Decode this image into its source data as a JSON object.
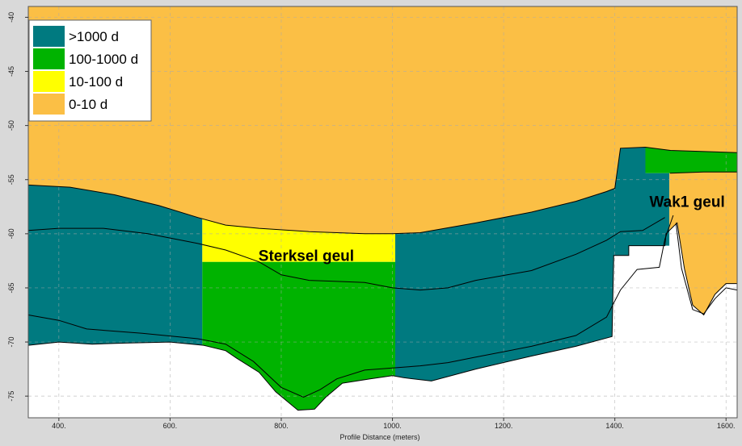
{
  "chart_data": {
    "type": "area",
    "title": "",
    "xlabel": "Profile Distance (meters)",
    "ylabel": "",
    "xlim": [
      345,
      1620
    ],
    "ylim": [
      -77,
      -39
    ],
    "x_ticks": [
      400,
      600,
      800,
      1000,
      1200,
      1400,
      1600
    ],
    "x_tick_labels": [
      "400.",
      "600.",
      "800.",
      "1000.",
      "1200.",
      "1400.",
      "1600."
    ],
    "y_ticks": [
      -40,
      -45,
      -50,
      -55,
      -60,
      -65,
      -70,
      -75
    ],
    "y_tick_labels": [
      "-40",
      "-45",
      "-50",
      "-55",
      "-60",
      "-65",
      "-70",
      "-75"
    ],
    "grid": true,
    "legend_position": "top-left",
    "legend": [
      {
        "label": ">1000 d",
        "color": "#007a80"
      },
      {
        "label": "100-1000 d",
        "color": "#00b300"
      },
      {
        "label": "10-100 d",
        "color": "#ffff00"
      },
      {
        "label": "0-10 d",
        "color": "#fbbf45"
      }
    ],
    "annotations": [
      {
        "text": "Sterksel geul",
        "x": 845,
        "y": -62.5
      },
      {
        "text": "Wak1 geul",
        "x": 1530,
        "y": -57.5
      }
    ],
    "colors": {
      ">1000 d": "#007a80",
      "100-1000 d": "#00b300",
      "10-100 d": "#ffff00",
      "0-10 d": "#fbbf45"
    },
    "top_model_surface": [
      [
        345,
        -38.8
      ],
      [
        1620,
        -38.8
      ]
    ],
    "top_aquifer_boundary": [
      [
        345,
        -55.5
      ],
      [
        420,
        -55.7
      ],
      [
        500,
        -56.4
      ],
      [
        580,
        -57.4
      ],
      [
        650,
        -58.5
      ],
      [
        700,
        -59.2
      ],
      [
        760,
        -59.5
      ],
      [
        850,
        -59.8
      ],
      [
        950,
        -60.0
      ],
      [
        1000,
        -60.0
      ],
      [
        1050,
        -59.9
      ],
      [
        1150,
        -59.0
      ],
      [
        1250,
        -58.0
      ],
      [
        1330,
        -57.0
      ],
      [
        1385,
        -56.1
      ],
      [
        1400,
        -55.8
      ],
      [
        1410,
        -52.1
      ],
      [
        1455,
        -52.0
      ],
      [
        1500,
        -52.3
      ],
      [
        1620,
        -52.5
      ]
    ],
    "wak1_top": [
      [
        1499,
        -54.4
      ],
      [
        1560,
        -54.3
      ],
      [
        1620,
        -54.3
      ]
    ],
    "middle_layer_line": [
      [
        345,
        -59.7
      ],
      [
        400,
        -59.5
      ],
      [
        480,
        -59.5
      ],
      [
        560,
        -60.0
      ],
      [
        650,
        -60.9
      ],
      [
        700,
        -61.5
      ],
      [
        760,
        -62.6
      ],
      [
        800,
        -63.8
      ],
      [
        850,
        -64.3
      ],
      [
        900,
        -64.4
      ],
      [
        950,
        -64.5
      ],
      [
        1000,
        -65.0
      ],
      [
        1050,
        -65.2
      ],
      [
        1100,
        -65.0
      ],
      [
        1150,
        -64.3
      ],
      [
        1250,
        -63.4
      ],
      [
        1330,
        -61.9
      ],
      [
        1385,
        -60.6
      ],
      [
        1410,
        -59.8
      ],
      [
        1450,
        -59.7
      ],
      [
        1490,
        -58.5
      ]
    ],
    "bottom_layer_line": [
      [
        345,
        -67.5
      ],
      [
        400,
        -68.0
      ],
      [
        450,
        -68.8
      ],
      [
        550,
        -69.2
      ],
      [
        650,
        -69.7
      ],
      [
        700,
        -70.2
      ],
      [
        750,
        -71.8
      ],
      [
        800,
        -74.2
      ],
      [
        840,
        -75.1
      ],
      [
        870,
        -74.4
      ],
      [
        900,
        -73.4
      ],
      [
        950,
        -72.6
      ],
      [
        1000,
        -72.4
      ],
      [
        1050,
        -72.2
      ],
      [
        1100,
        -71.9
      ],
      [
        1150,
        -71.4
      ],
      [
        1250,
        -70.4
      ],
      [
        1330,
        -69.4
      ],
      [
        1385,
        -67.7
      ],
      [
        1410,
        -65.2
      ],
      [
        1440,
        -63.3
      ],
      [
        1480,
        -63.1
      ],
      [
        1490,
        -60.5
      ],
      [
        1505,
        -58.3
      ]
    ],
    "wak1_bottom_line": [
      [
        1510,
        -59.0
      ],
      [
        1520,
        -63.2
      ],
      [
        1540,
        -67.0
      ],
      [
        1560,
        -67.4
      ],
      [
        1580,
        -66.0
      ],
      [
        1600,
        -65.0
      ],
      [
        1620,
        -65.2
      ]
    ],
    "aquifer_base": [
      [
        345,
        -70.3
      ],
      [
        400,
        -70.0
      ],
      [
        460,
        -70.2
      ],
      [
        520,
        -70.1
      ],
      [
        600,
        -70.0
      ],
      [
        660,
        -70.3
      ],
      [
        700,
        -70.8
      ],
      [
        720,
        -71.5
      ],
      [
        760,
        -72.8
      ],
      [
        790,
        -74.6
      ],
      [
        830,
        -76.3
      ],
      [
        860,
        -76.2
      ],
      [
        880,
        -75.1
      ],
      [
        910,
        -73.8
      ],
      [
        960,
        -73.4
      ],
      [
        1000,
        -73.1
      ],
      [
        1020,
        -73.3
      ],
      [
        1070,
        -73.6
      ],
      [
        1150,
        -72.5
      ],
      [
        1250,
        -71.3
      ],
      [
        1330,
        -70.4
      ],
      [
        1395,
        -69.5
      ],
      [
        1398,
        -62.0
      ],
      [
        1425,
        -62.0
      ],
      [
        1425,
        -61.1
      ],
      [
        1490,
        -61.1
      ],
      [
        1492,
        -60.0
      ],
      [
        1512,
        -59.0
      ],
      [
        1525,
        -63.2
      ],
      [
        1540,
        -66.6
      ],
      [
        1560,
        -67.5
      ],
      [
        1580,
        -65.6
      ],
      [
        1600,
        -64.6
      ],
      [
        1620,
        -64.6
      ]
    ],
    "zones": [
      {
        "class": ">1000 d",
        "x_start": 345,
        "x_end": 658,
        "y_top": "top_aquifer_boundary",
        "y_bottom": "aquifer_base"
      },
      {
        "class": "10-100 d",
        "x_start": 658,
        "x_end": 1005,
        "y_top": "top_aquifer_boundary",
        "y_bottom": -62.6
      },
      {
        "class": "100-1000 d",
        "x_start": 658,
        "x_end": 1005,
        "y_top": -62.6,
        "y_bottom": "aquifer_base"
      },
      {
        "class": ">1000 d",
        "x_start": 1005,
        "x_end": 1455,
        "y_top": "top_aquifer_boundary",
        "y_bottom": "aquifer_base"
      },
      {
        "class": "100-1000 d",
        "x_start": 1455,
        "x_end": 1620,
        "y_top": "top_aquifer_boundary",
        "y_bottom": "wak1_top"
      },
      {
        "class": ">1000 d",
        "x_start": 1455,
        "x_end": 1498,
        "y_top": -54.4,
        "y_bottom": -61.1
      },
      {
        "class": "0-10 d",
        "x_start": 1498,
        "x_end": 1620,
        "y_top": "wak1_top",
        "y_bottom": "aquifer_base"
      }
    ]
  }
}
